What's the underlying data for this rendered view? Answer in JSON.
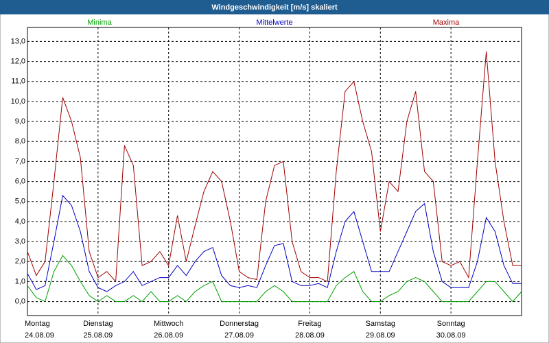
{
  "chart_data": {
    "type": "line",
    "title": "Windgeschwindigkeit [m/s] skaliert",
    "x": [
      0,
      3,
      6,
      9,
      12,
      15,
      18,
      21,
      24,
      27,
      30,
      33,
      36,
      39,
      42,
      45,
      48,
      51,
      54,
      57,
      60,
      63,
      66,
      69,
      72,
      75,
      78,
      81,
      84,
      87,
      90,
      93,
      96,
      99,
      102,
      105,
      108,
      111,
      114,
      117,
      120,
      123,
      126,
      129,
      132,
      135,
      138,
      141,
      144,
      147,
      150,
      153,
      156,
      159,
      162,
      165,
      168
    ],
    "xlim": [
      0,
      168
    ],
    "xticks": [
      {
        "value": 0,
        "label": "Montag",
        "date": "24.08.09"
      },
      {
        "value": 24,
        "label": "Dienstag",
        "date": "25.08.09"
      },
      {
        "value": 48,
        "label": "Mittwoch",
        "date": "26.08.09"
      },
      {
        "value": 72,
        "label": "Donnerstag",
        "date": "27.08.09"
      },
      {
        "value": 96,
        "label": "Freitag",
        "date": "28.08.09"
      },
      {
        "value": 120,
        "label": "Samstag",
        "date": "29.08.09"
      },
      {
        "value": 144,
        "label": "Sonntag",
        "date": "30.08.09"
      }
    ],
    "ylim": [
      -0.7,
      13.7
    ],
    "yticks": [
      {
        "value": 0,
        "label": "0,0"
      },
      {
        "value": 1,
        "label": "1,0"
      },
      {
        "value": 2,
        "label": "2,0"
      },
      {
        "value": 3,
        "label": "3,0"
      },
      {
        "value": 4,
        "label": "4,0"
      },
      {
        "value": 5,
        "label": "5,0"
      },
      {
        "value": 6,
        "label": "6,0"
      },
      {
        "value": 7,
        "label": "7,0"
      },
      {
        "value": 8,
        "label": "8,0"
      },
      {
        "value": 9,
        "label": "9,0"
      },
      {
        "value": 10,
        "label": "10,0"
      },
      {
        "value": 11,
        "label": "11,0"
      },
      {
        "value": 12,
        "label": "12,0"
      },
      {
        "value": 13,
        "label": "13,0"
      }
    ],
    "grid": true,
    "series": [
      {
        "name": "Minima",
        "color": "#00a000",
        "values": [
          0.8,
          0.2,
          0,
          1.5,
          2.3,
          1.8,
          1.0,
          0.3,
          0,
          0.3,
          0,
          0,
          0.3,
          0,
          0.5,
          0,
          0,
          0.3,
          0,
          0.5,
          0.8,
          1.0,
          0,
          0,
          0,
          0,
          0,
          0.5,
          0.8,
          0.5,
          0,
          0,
          0,
          0,
          0,
          0.8,
          1.2,
          1.5,
          0.5,
          0,
          0,
          0.3,
          0.5,
          1.0,
          1.2,
          1.0,
          0.5,
          0,
          0,
          0,
          0,
          0.5,
          1.0,
          1.0,
          0.5,
          0,
          0.5
        ]
      },
      {
        "name": "Mittelwerte",
        "color": "#0000c0",
        "values": [
          1.4,
          0.6,
          0.8,
          3.0,
          5.3,
          4.8,
          3.5,
          1.5,
          0.7,
          0.5,
          0.8,
          1.0,
          1.5,
          0.8,
          1.0,
          1.2,
          1.2,
          1.8,
          1.3,
          2.0,
          2.5,
          2.7,
          1.3,
          0.8,
          0.7,
          0.8,
          0.7,
          1.8,
          2.8,
          2.9,
          1.0,
          0.8,
          0.8,
          0.9,
          0.7,
          2.5,
          4.0,
          4.5,
          3.0,
          1.5,
          1.5,
          1.5,
          2.5,
          3.5,
          4.5,
          4.9,
          2.5,
          1.0,
          0.7,
          0.7,
          0.7,
          2.0,
          4.2,
          3.5,
          1.8,
          0.9,
          0.9
        ]
      },
      {
        "name": "Maxima",
        "color": "#a00000",
        "values": [
          2.5,
          1.3,
          2.0,
          6.0,
          10.2,
          9.0,
          7.2,
          2.5,
          1.2,
          1.5,
          1.0,
          7.8,
          6.8,
          1.8,
          2.0,
          2.5,
          1.8,
          4.3,
          2.0,
          3.8,
          5.5,
          6.5,
          6.0,
          4.0,
          1.5,
          1.2,
          1.1,
          5.0,
          6.8,
          7.0,
          3.0,
          1.5,
          1.2,
          1.2,
          1.0,
          6.5,
          10.5,
          11.0,
          9.0,
          7.5,
          3.5,
          6.0,
          5.5,
          9.0,
          10.5,
          6.5,
          6.0,
          2.0,
          1.8,
          2.0,
          1.2,
          7.0,
          12.5,
          7.0,
          4.0,
          1.8,
          1.8
        ]
      }
    ]
  }
}
